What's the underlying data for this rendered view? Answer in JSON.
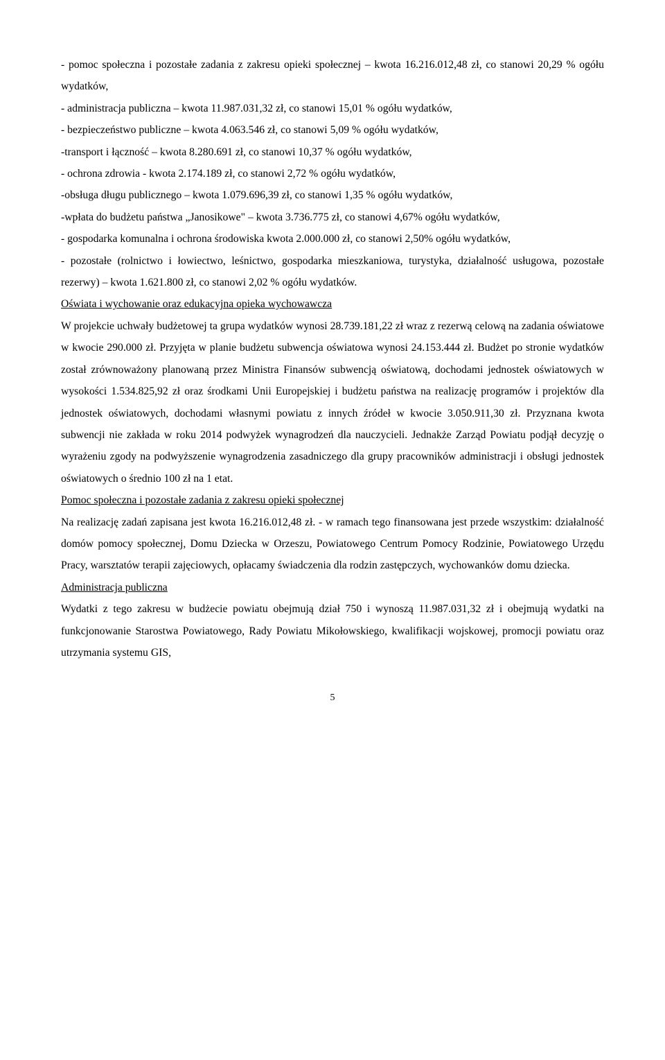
{
  "p1": "- pomoc społeczna i pozostałe zadania z zakresu opieki społecznej – kwota 16.216.012,48 zł, co stanowi 20,29 % ogółu wydatków,",
  "p2": "- administracja publiczna – kwota 11.987.031,32 zł, co stanowi 15,01 % ogółu wydatków,",
  "p3": "- bezpieczeństwo publiczne – kwota 4.063.546 zł, co stanowi 5,09 % ogółu wydatków,",
  "p4_a": " -transport i łączność – kwota ",
  "p4_b": "8.280.691 zł, co stanowi  10,37 % ogółu wydatków,",
  "p5": "- ochrona zdrowia - kwota 2.174.189 zł, co stanowi  2,72 % ogółu wydatków,",
  "p6": "-obsługa długu publicznego – kwota 1.079.696,39 zł, co stanowi 1,35 % ogółu wydatków,",
  "p7": "-wpłata do budżetu państwa „Janosikowe\" – kwota 3.736.775 zł, co stanowi 4,67% ogółu wydatków,",
  "p8": "- gospodarka komunalna i ochrona środowiska  kwota 2.000.000 zł, co stanowi 2,50% ogółu wydatków,",
  "p9": "- pozostałe (rolnictwo i łowiectwo, leśnictwo, gospodarka mieszkaniowa, turystyka, działalność usługowa, pozostałe rezerwy) –  kwota 1.621.800 zł, co stanowi 2,02 % ogółu wydatków.",
  "h1": "Oświata i wychowanie oraz edukacyjna opieka wychowawcza",
  "p10": "W projekcie uchwały budżetowej ta grupa wydatków wynosi 28.739.181,22 zł wraz z rezerwą celową na zadania oświatowe w kwocie 290.000 zł. Przyjęta w planie budżetu subwencja oświatowa wynosi 24.153.444 zł. Budżet po stronie wydatków został zrównoważony planowaną przez Ministra Finansów subwencją oświatową, dochodami jednostek oświatowych w wysokości 1.534.825,92 zł oraz środkami Unii Europejskiej i budżetu państwa na realizację programów i projektów dla jednostek oświatowych, dochodami własnymi powiatu z innych źródeł w kwocie 3.050.911,30 zł. Przyznana kwota subwencji nie zakłada w roku 2014 podwyżek wynagrodzeń dla nauczycieli. Jednakże Zarząd Powiatu podjął decyzję o wyrażeniu zgody na podwyższenie wynagrodzenia zasadniczego dla grupy pracowników administracji i obsługi jednostek oświatowych o średnio 100 zł  na 1 etat.",
  "h2": "Pomoc społeczna i pozostałe zadania z zakresu opieki społecznej",
  "p11": "Na realizację zadań zapisana jest kwota 16.216.012,48 zł. - w ramach tego finansowana jest przede wszystkim: działalność domów pomocy społecznej, Domu Dziecka w Orzeszu, Powiatowego Centrum Pomocy Rodzinie, Powiatowego Urzędu Pracy, warsztatów terapii zajęciowych, opłacamy świadczenia dla rodzin zastępczych, wychowanków domu dziecka.",
  "h3": "Administracja publiczna",
  "p12": "Wydatki z tego zakresu w budżecie powiatu obejmują dział 750 i wynoszą 11.987.031,32 zł i obejmują wydatki na funkcjonowanie Starostwa Powiatowego, Rady Powiatu Mikołowskiego, kwalifikacji wojskowej, promocji powiatu oraz utrzymania systemu GIS,",
  "pageNumber": "5"
}
